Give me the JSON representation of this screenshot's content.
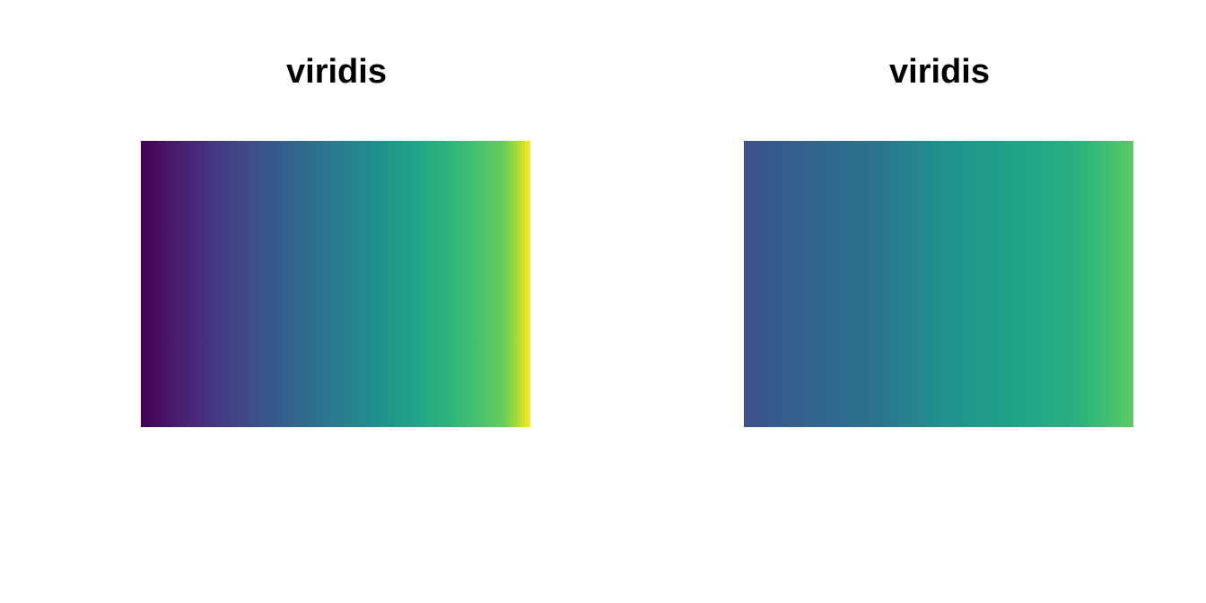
{
  "chart_data": [
    {
      "type": "heatmap",
      "title": "viridis",
      "palette": "viridis",
      "range": [
        0,
        1
      ],
      "stops": [
        {
          "at": 0.0,
          "color": "#440154"
        },
        {
          "at": 0.07,
          "color": "#481769"
        },
        {
          "at": 0.14,
          "color": "#472a7a"
        },
        {
          "at": 0.21,
          "color": "#433d84"
        },
        {
          "at": 0.29,
          "color": "#3d4e8a"
        },
        {
          "at": 0.36,
          "color": "#355e8d"
        },
        {
          "at": 0.43,
          "color": "#2e6d8e"
        },
        {
          "at": 0.5,
          "color": "#297b8e"
        },
        {
          "at": 0.57,
          "color": "#23898e"
        },
        {
          "at": 0.64,
          "color": "#1f978b"
        },
        {
          "at": 0.71,
          "color": "#21a585"
        },
        {
          "at": 0.79,
          "color": "#2eb37c"
        },
        {
          "at": 0.86,
          "color": "#46c06f"
        },
        {
          "at": 0.93,
          "color": "#65cb5e"
        },
        {
          "at": 0.96,
          "color": "#9bd93c"
        },
        {
          "at": 1.0,
          "color": "#fde725"
        }
      ],
      "grid": false,
      "axes": false
    },
    {
      "type": "heatmap",
      "title": "viridis",
      "palette": "viridis",
      "range": [
        0.25,
        0.85
      ],
      "stops": [
        {
          "at": 0.25,
          "color": "#3b528b"
        },
        {
          "at": 0.35,
          "color": "#33638d"
        },
        {
          "at": 0.45,
          "color": "#2c728e"
        },
        {
          "at": 0.55,
          "color": "#21908d"
        },
        {
          "at": 0.65,
          "color": "#1fa088"
        },
        {
          "at": 0.75,
          "color": "#28ae80"
        },
        {
          "at": 0.8,
          "color": "#3bbb75"
        },
        {
          "at": 0.85,
          "color": "#5ec962"
        }
      ],
      "grid": false,
      "axes": false
    }
  ]
}
